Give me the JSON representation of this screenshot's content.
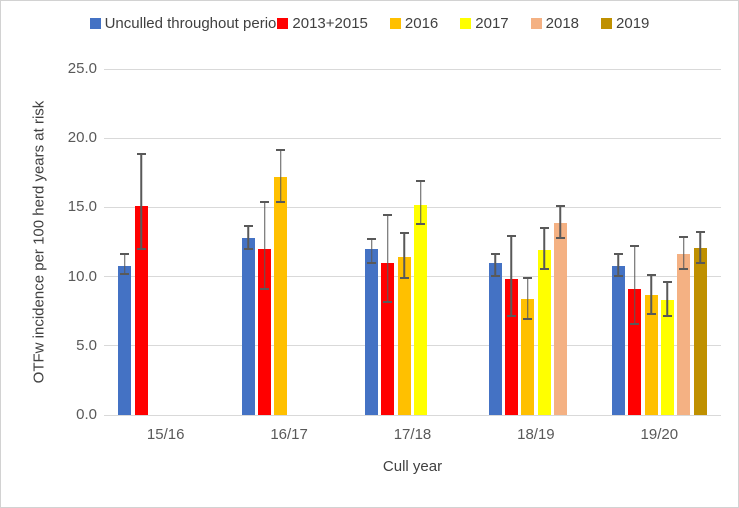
{
  "chart_data": {
    "type": "bar",
    "title": "",
    "xlabel": "Cull year",
    "ylabel": "OTFw incidence per 100 herd years at risk",
    "categories": [
      "15/16",
      "16/17",
      "17/18",
      "18/19",
      "19/20"
    ],
    "ylim": [
      0,
      25
    ],
    "ytick_step": 5,
    "ytick_labels": [
      "0.0",
      "5.0",
      "10.0",
      "15.0",
      "20.0",
      "25.0"
    ],
    "grid": true,
    "legend_position": "top",
    "error_bars": true,
    "series": [
      {
        "name": "Unculled throughout perio",
        "color": "#4472C4",
        "values": [
          10.8,
          12.8,
          12.0,
          11.0,
          10.8
        ],
        "error_low": [
          10.1,
          11.9,
          10.9,
          10.0,
          10.0
        ],
        "error_high": [
          11.7,
          13.7,
          12.8,
          11.7,
          11.7
        ]
      },
      {
        "name": "2013+2015",
        "color": "#FF0000",
        "values": [
          15.1,
          12.0,
          11.0,
          9.8,
          9.1
        ],
        "error_low": [
          11.9,
          9.0,
          8.1,
          7.1,
          6.5
        ],
        "error_high": [
          18.9,
          15.5,
          14.5,
          13.0,
          12.3
        ]
      },
      {
        "name": "2016",
        "color": "#FFC000",
        "values": [
          null,
          17.2,
          11.4,
          8.4,
          8.7
        ],
        "error_low": [
          null,
          15.3,
          9.8,
          6.9,
          7.2
        ],
        "error_high": [
          null,
          19.2,
          13.2,
          10.0,
          10.2
        ]
      },
      {
        "name": "2017",
        "color": "#FFFF00",
        "values": [
          null,
          null,
          15.2,
          11.9,
          8.3
        ],
        "error_low": [
          null,
          null,
          13.7,
          10.5,
          7.1
        ],
        "error_high": [
          null,
          null,
          17.0,
          13.6,
          9.7
        ]
      },
      {
        "name": "2018",
        "color": "#F4B183",
        "values": [
          null,
          null,
          null,
          13.9,
          11.6
        ],
        "error_low": [
          null,
          null,
          null,
          12.7,
          10.5
        ],
        "error_high": [
          null,
          null,
          null,
          15.2,
          12.9
        ]
      },
      {
        "name": "2019",
        "color": "#BF9000",
        "values": [
          null,
          null,
          null,
          null,
          12.1
        ],
        "error_low": [
          null,
          null,
          null,
          null,
          10.9
        ],
        "error_high": [
          null,
          null,
          null,
          null,
          13.3
        ]
      }
    ]
  },
  "colors": {
    "gridline": "#D9D9D9",
    "axis_text": "#595959",
    "legend_text": "#404040",
    "error_bar": "#595959",
    "border": "#D2D2D2",
    "background": "#FFFFFF"
  }
}
